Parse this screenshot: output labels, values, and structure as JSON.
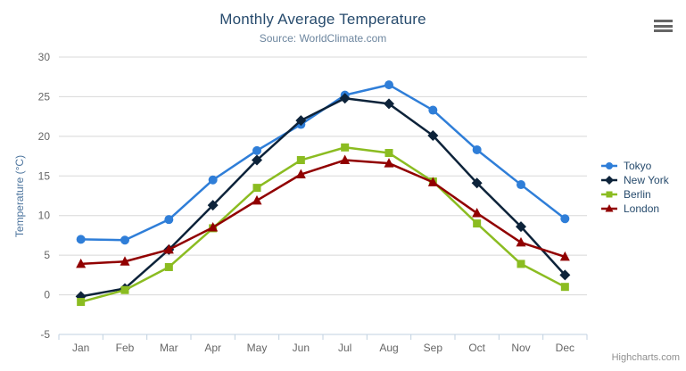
{
  "credits": "Highcharts.com",
  "icons": {
    "export_menu": "hamburger-menu-icon"
  },
  "chart_data": {
    "type": "line",
    "title": "Monthly Average Temperature",
    "subtitle": "Source: WorldClimate.com",
    "xlabel": "",
    "ylabel": "Temperature (°C)",
    "categories": [
      "Jan",
      "Feb",
      "Mar",
      "Apr",
      "May",
      "Jun",
      "Jul",
      "Aug",
      "Sep",
      "Oct",
      "Nov",
      "Dec"
    ],
    "ylim": [
      -5,
      30
    ],
    "y_tick_interval": 5,
    "grid": true,
    "legend_position": "right",
    "axis_colors": {
      "grid_line": "#d8d8d8",
      "axis_line": "#c0d0e0",
      "tick_label": "#666666",
      "axis_title": "#4d759e"
    },
    "series": [
      {
        "name": "Tokyo",
        "color": "#2f7ed8",
        "marker": "circle",
        "values": [
          7.0,
          6.9,
          9.5,
          14.5,
          18.2,
          21.5,
          25.2,
          26.5,
          23.3,
          18.3,
          13.9,
          9.6
        ]
      },
      {
        "name": "New York",
        "color": "#0d233a",
        "marker": "diamond",
        "values": [
          -0.2,
          0.8,
          5.7,
          11.3,
          17.0,
          22.0,
          24.8,
          24.1,
          20.1,
          14.1,
          8.6,
          2.5
        ]
      },
      {
        "name": "Berlin",
        "color": "#8bbc21",
        "marker": "square",
        "values": [
          -0.9,
          0.6,
          3.5,
          8.4,
          13.5,
          17.0,
          18.6,
          17.9,
          14.3,
          9.0,
          3.9,
          1.0
        ]
      },
      {
        "name": "London",
        "color": "#910000",
        "marker": "triangle",
        "values": [
          3.9,
          4.2,
          5.7,
          8.5,
          11.9,
          15.2,
          17.0,
          16.6,
          14.2,
          10.3,
          6.6,
          4.8
        ]
      }
    ]
  }
}
